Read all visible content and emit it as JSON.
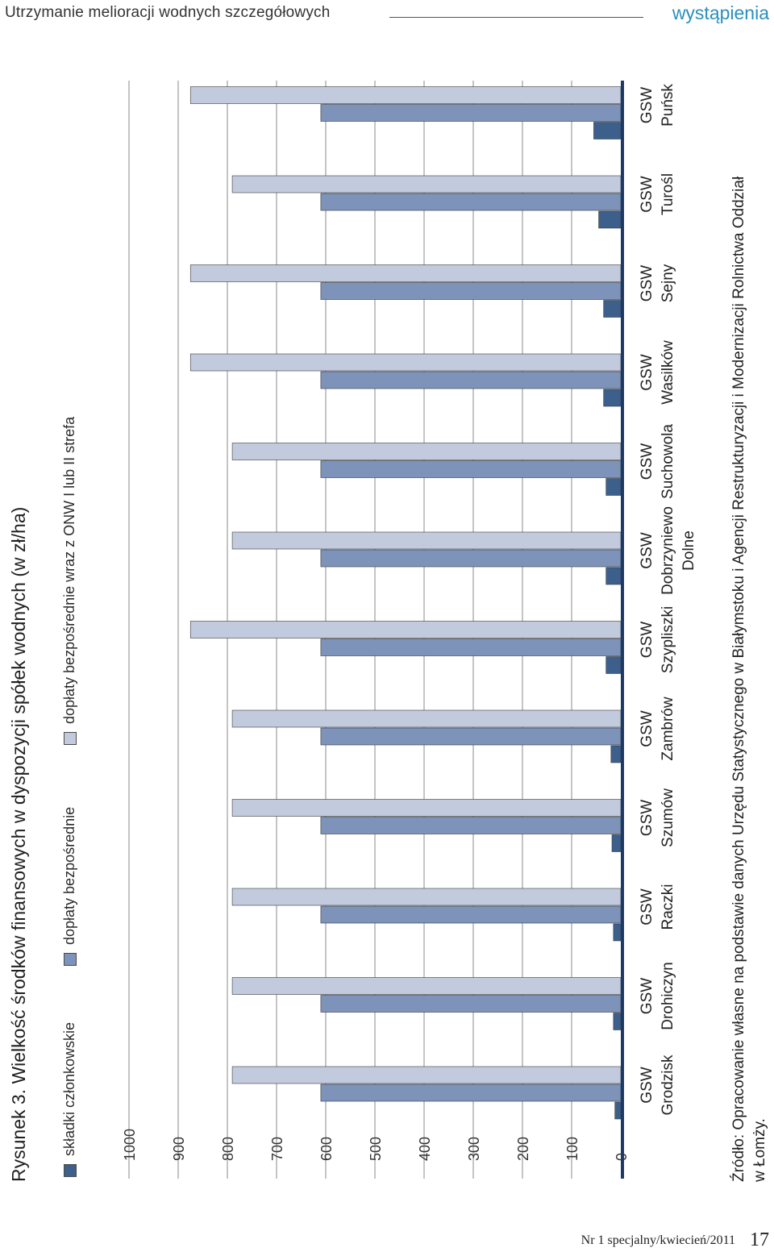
{
  "header": {
    "title": "Utrzymanie melioracji wodnych szczegółowych",
    "section": "wystąpienia"
  },
  "figure": {
    "caption": "Rysunek 3. Wielkość środków finansowych w dyspozycji spółek wodnych (w zł/ha)"
  },
  "source": {
    "line1": "Źródło: Opracowanie własne na podstawie danych Urzędu Statystycznego w Białymstoku i Agencji Restrukturyzacji i Modernizacji Rolnictwa Oddział",
    "line2": "w Łomży."
  },
  "footer": {
    "issue": "Nr 1 specjalny/kwiecień/2011",
    "page": "17"
  },
  "colors": {
    "skladki": "#3c5f8c",
    "doplaty": "#7d93b9",
    "doplaty_onw": "#c2cbde",
    "axis": "#1d3a66",
    "grid": "#8a8a8a",
    "header_accent": "#2a8fbd"
  },
  "chart_data": {
    "type": "bar",
    "orientation": "horizontal",
    "categories": [
      [
        "GSW",
        "Grodzisk"
      ],
      [
        "GSW",
        "Drohiczyn"
      ],
      [
        "GSW",
        "Raczki"
      ],
      [
        "GSW",
        "Szumów"
      ],
      [
        "GSW",
        "Zambrów"
      ],
      [
        "GSW",
        "Szypliszki"
      ],
      [
        "GSW",
        "Dobrzyniewo",
        "Dolne"
      ],
      [
        "GSW",
        "Suchowola"
      ],
      [
        "GSW",
        "Wasilków"
      ],
      [
        "GSW",
        "Sejny"
      ],
      [
        "GSW",
        "Turośl"
      ],
      [
        "GSW",
        "Puńsk"
      ]
    ],
    "series": [
      {
        "name": "składki członkowskie",
        "values": [
          12,
          15,
          15,
          18,
          20,
          30,
          30,
          30,
          35,
          35,
          45,
          55
        ]
      },
      {
        "name": "dopłaty bezpośrednie",
        "values": [
          610,
          610,
          610,
          610,
          610,
          610,
          610,
          610,
          610,
          610,
          610,
          610
        ]
      },
      {
        "name": "dopłaty bezpośrednie wraz z ONW I lub II strefa",
        "values": [
          790,
          790,
          790,
          790,
          790,
          875,
          790,
          790,
          875,
          875,
          790,
          875
        ]
      }
    ],
    "ticks": [
      0,
      100,
      200,
      300,
      400,
      500,
      600,
      700,
      800,
      900,
      1000
    ],
    "xlim": [
      0,
      1000
    ],
    "grid": true,
    "legend_position": "top"
  }
}
